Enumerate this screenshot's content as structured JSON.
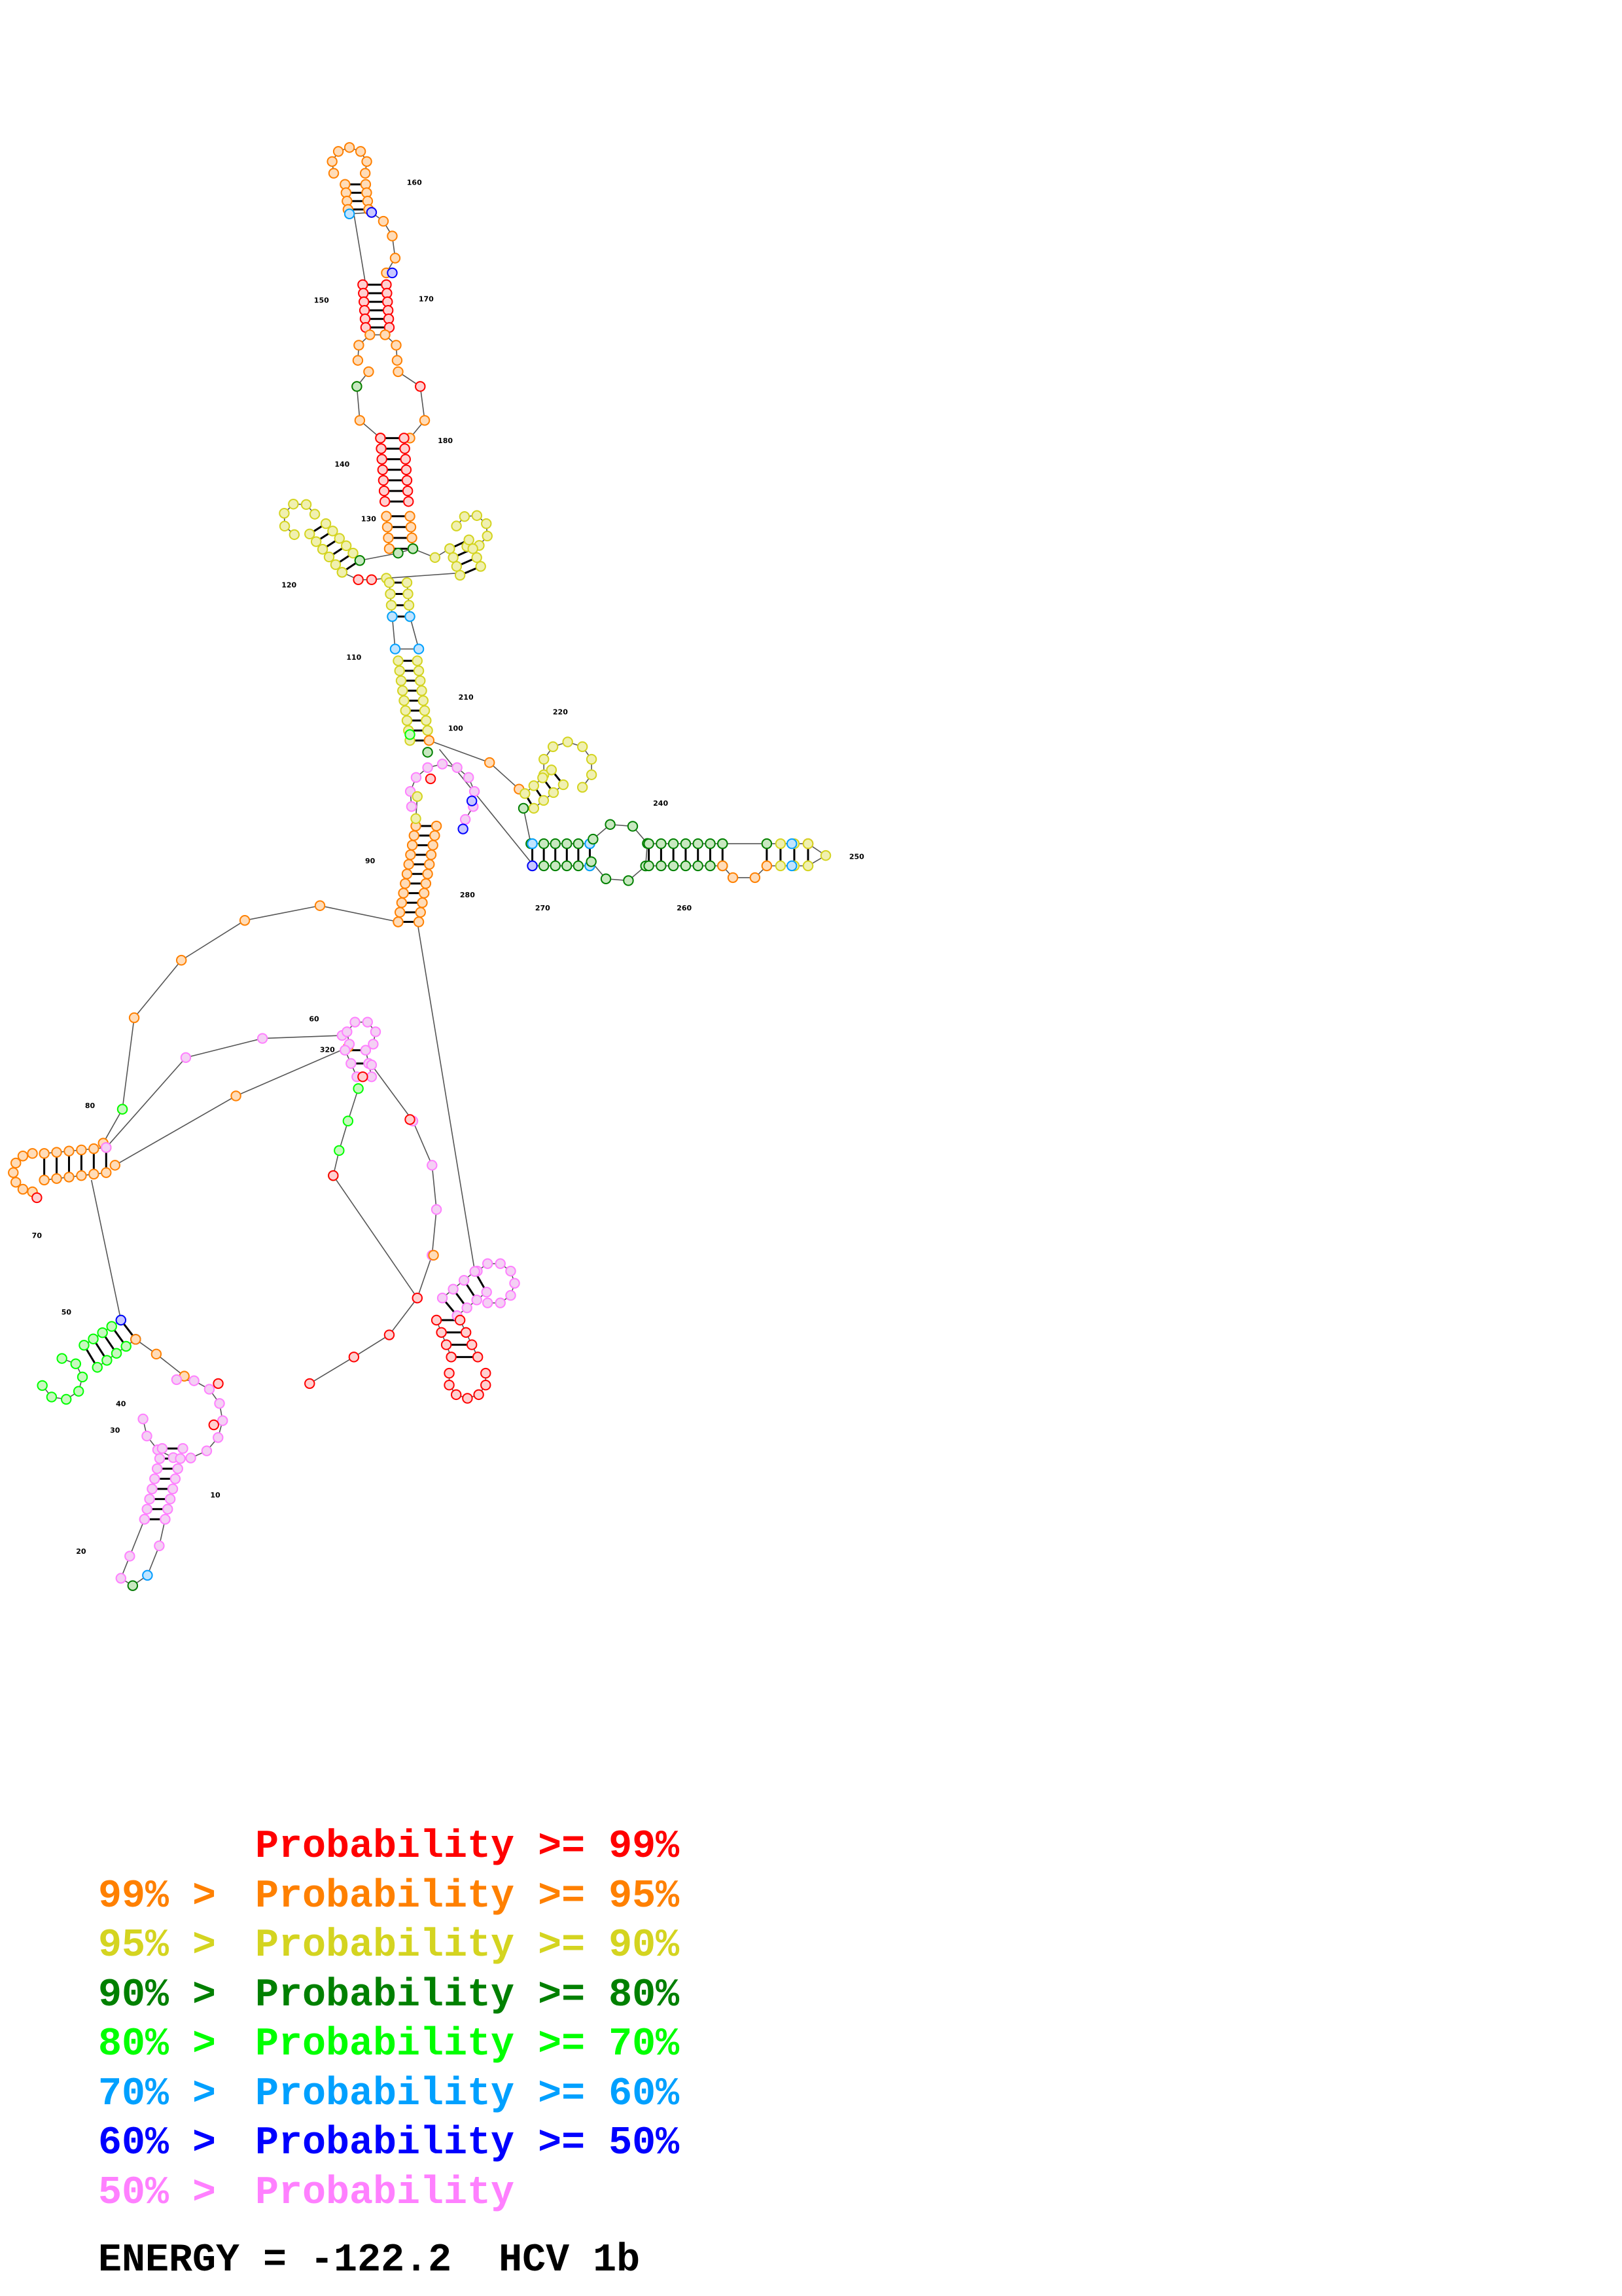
{
  "colors": {
    "p99": "#ff0000",
    "p95": "#ff8000",
    "p90": "#d4d420",
    "p80": "#008000",
    "p70": "#00ff00",
    "p60": "#00a0ff",
    "p50": "#0000ff",
    "plt50": "#ff80ff"
  },
  "legend": [
    {
      "prefix": "",
      "text": "Probability >= 99%",
      "color_key": "p99"
    },
    {
      "prefix": "99% > ",
      "text": "Probability >= 95%",
      "color_key": "p95"
    },
    {
      "prefix": "95% > ",
      "text": "Probability >= 90%",
      "color_key": "p90"
    },
    {
      "prefix": "90% > ",
      "text": "Probability >= 80%",
      "color_key": "p80"
    },
    {
      "prefix": "80% > ",
      "text": "Probability >= 70%",
      "color_key": "p70"
    },
    {
      "prefix": "70% > ",
      "text": "Probability >= 60%",
      "color_key": "p60"
    },
    {
      "prefix": "60% > ",
      "text": "Probability >= 50%",
      "color_key": "p50"
    },
    {
      "prefix": "50% > ",
      "text": "Probability",
      "color_key": "plt50"
    }
  ],
  "footer": {
    "energy": "ENERGY = -122.2",
    "name": "HCV 1b"
  },
  "position_labels": [
    "10",
    "20",
    "30",
    "40",
    "50",
    "60",
    "70",
    "80",
    "90",
    "100",
    "110",
    "120",
    "130",
    "140",
    "150",
    "160",
    "170",
    "180",
    "210",
    "220",
    "240",
    "250",
    "260",
    "270",
    "280",
    "320"
  ]
}
